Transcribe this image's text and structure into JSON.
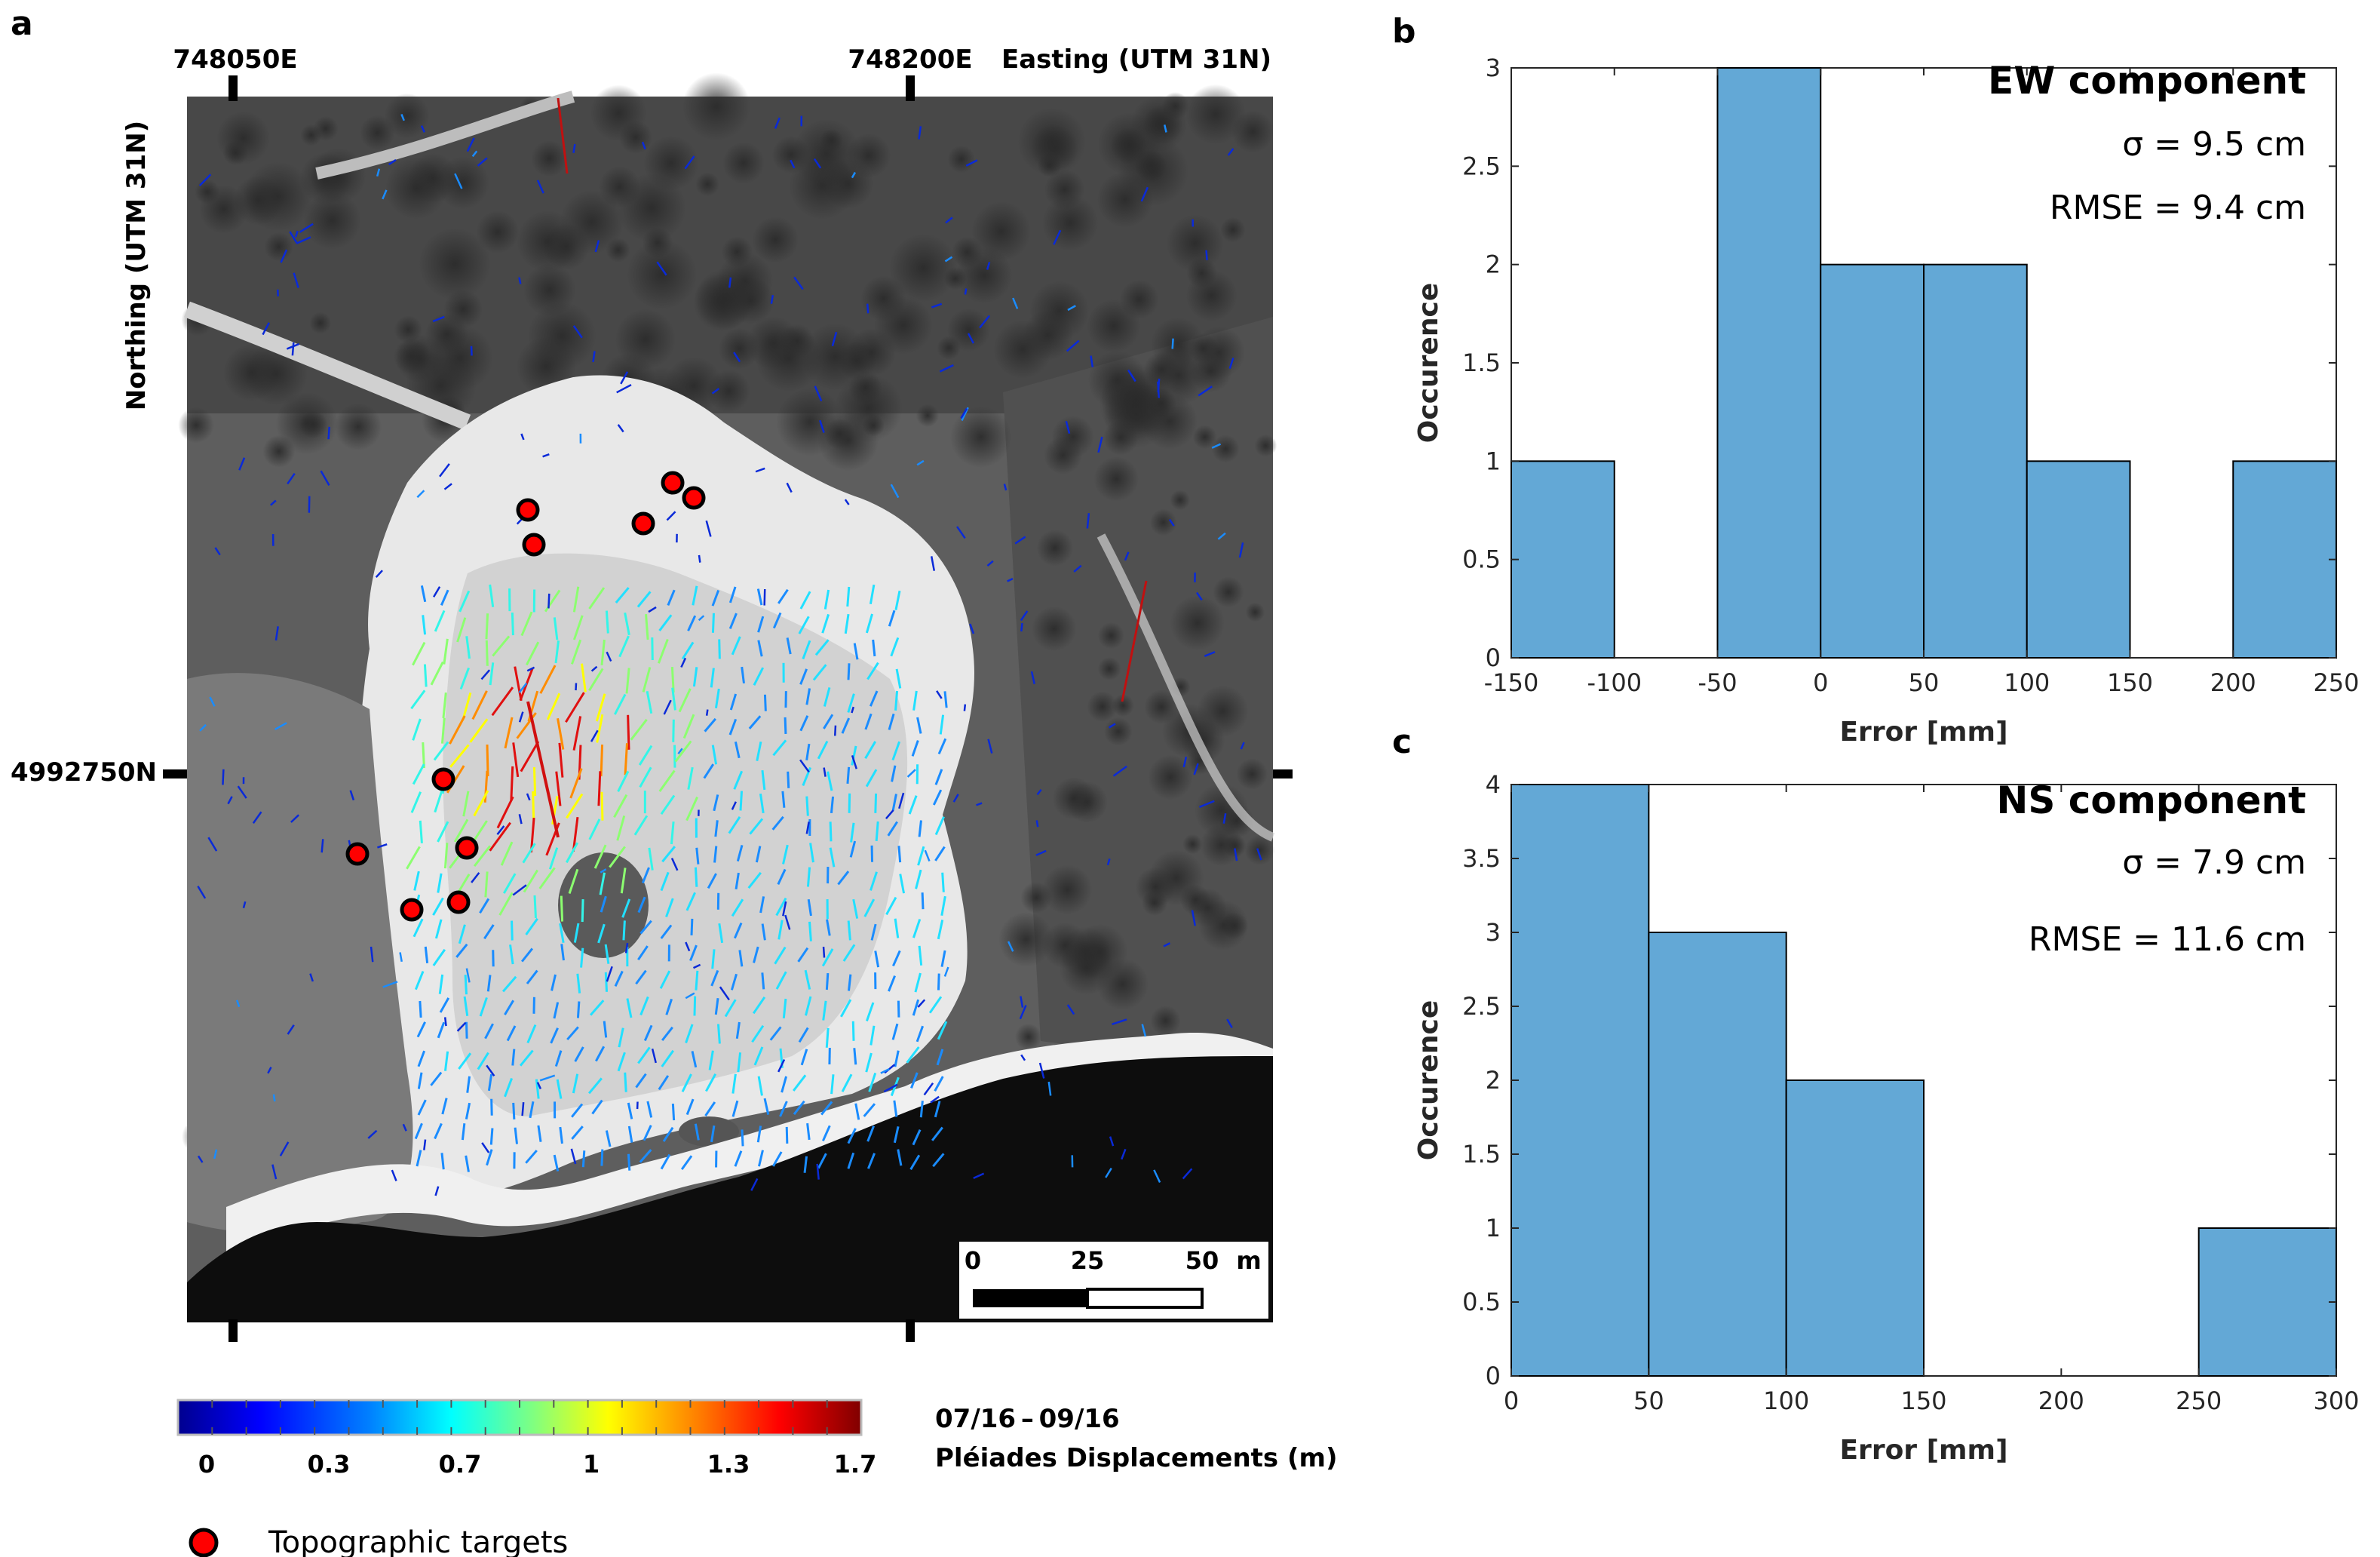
{
  "panel_a": {
    "label": "a",
    "easting_ticks": [
      "748050E",
      "748200E"
    ],
    "easting_title": "Easting (UTM 31N)",
    "northing_tick": "4992750N",
    "northing_title": "Northing (UTM 31N)",
    "scalebar": {
      "labels": [
        "0",
        "25",
        "50"
      ],
      "unit": "m"
    },
    "colorbar": {
      "tick_labels": [
        "0",
        "0.3",
        "0.7",
        "1",
        "1.3",
        "1.7"
      ],
      "date_label": "07/16 – 09/16",
      "title": "Pléiades Displacements (m)",
      "colors": [
        "#00008f",
        "#0000ff",
        "#0080ff",
        "#00ffff",
        "#80ff80",
        "#ffff00",
        "#ff8000",
        "#ff0000",
        "#800000"
      ]
    },
    "legend": {
      "marker_color": "#ff0000",
      "label": "Topographic targets"
    }
  },
  "chart_data": [
    {
      "type": "bar",
      "panel": "b",
      "histogram": true,
      "title": "EW component",
      "annotations": [
        "σ = 9.5 cm",
        "RMSE = 9.4 cm"
      ],
      "xlabel": "Error [mm]",
      "ylabel": "Occurence",
      "bin_edges": [
        -150,
        -100,
        -50,
        0,
        50,
        100,
        150,
        200,
        250
      ],
      "values": [
        1,
        0,
        3,
        2,
        2,
        1,
        0,
        1
      ],
      "xlim": [
        -150,
        250
      ],
      "ylim": [
        0,
        3
      ],
      "xticks": [
        "-150",
        "-100",
        "-50",
        "0",
        "50",
        "100",
        "150",
        "200",
        "250"
      ],
      "yticks": [
        "0",
        "0.5",
        "1",
        "1.5",
        "2",
        "2.5",
        "3"
      ],
      "bar_color": "#63a8d6"
    },
    {
      "type": "bar",
      "panel": "c",
      "histogram": true,
      "title": "NS component",
      "annotations": [
        "σ = 7.9 cm",
        "RMSE = 11.6 cm"
      ],
      "xlabel": "Error [mm]",
      "ylabel": "Occurence",
      "bin_edges": [
        0,
        50,
        100,
        150,
        200,
        250,
        300
      ],
      "values": [
        4,
        3,
        2,
        0,
        0,
        1
      ],
      "xlim": [
        0,
        300
      ],
      "ylim": [
        0,
        4
      ],
      "xticks": [
        "0",
        "50",
        "100",
        "150",
        "200",
        "250",
        "300"
      ],
      "yticks": [
        "0",
        "0.5",
        "1",
        "1.5",
        "2",
        "2.5",
        "3",
        "3.5",
        "4"
      ],
      "bar_color": "#63a8d6"
    }
  ]
}
